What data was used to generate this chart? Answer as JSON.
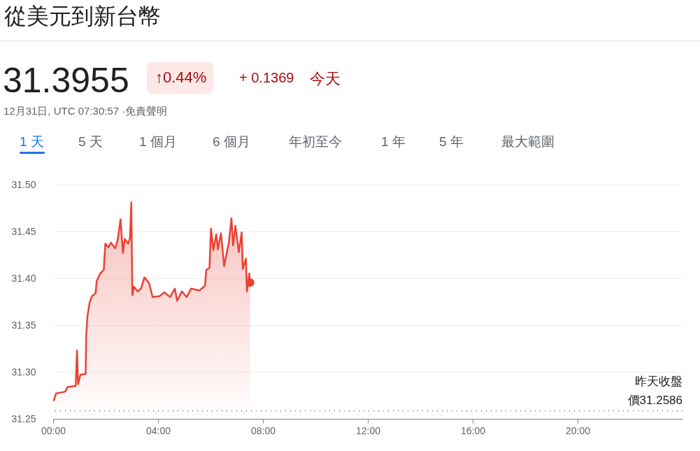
{
  "chart_data": {
    "type": "area",
    "title": "從美元到新台幣",
    "annotations": [
      "31.3955",
      "↑0.44%",
      "+ 0.1369",
      "今天",
      "12月31日, UTC 07:30:57 ·免責聲明",
      "1 天",
      "5 天",
      "1 個月",
      "6 個月",
      "年初至今",
      "1 年",
      "5 年",
      "最大範圍"
    ],
    "series": [
      {
        "color": "#e94235",
        "x": [
          0.02,
          0.107,
          0.46,
          0.55,
          0.86,
          0.91,
          0.95,
          1.04,
          1.24,
          1.26,
          1.31,
          1.39,
          1.48,
          1.62,
          1.66,
          1.79,
          1.93,
          1.99,
          2.11,
          2.2,
          2.37,
          2.46,
          2.57,
          2.66,
          2.73,
          2.86,
          2.93,
          2.98,
          3.02,
          3.08,
          3.22,
          3.35,
          3.48,
          3.66,
          3.79,
          4.06,
          4.24,
          4.46,
          4.64,
          4.73,
          4.91,
          5.09,
          5.26,
          5.57,
          5.79,
          5.84,
          5.96,
          6.02,
          6.11,
          6.22,
          6.28,
          6.4,
          6.52,
          6.64,
          6.7,
          6.8,
          6.86,
          6.95,
          7.08,
          7.19,
          7.23,
          7.35,
          7.39,
          7.48,
          7.51
        ],
        "values": [
          31.269,
          31.277,
          31.279,
          31.284,
          31.285,
          31.323,
          31.287,
          31.297,
          31.298,
          31.339,
          31.36,
          31.374,
          31.381,
          31.384,
          31.397,
          31.405,
          31.409,
          31.437,
          31.433,
          31.438,
          31.432,
          31.441,
          31.463,
          31.427,
          31.442,
          31.437,
          31.443,
          31.481,
          31.382,
          31.391,
          31.386,
          31.389,
          31.401,
          31.395,
          31.38,
          31.381,
          31.385,
          31.38,
          31.389,
          31.376,
          31.386,
          31.38,
          31.389,
          31.387,
          31.392,
          31.409,
          31.411,
          31.453,
          31.43,
          31.447,
          31.431,
          31.448,
          31.413,
          31.43,
          31.438,
          31.464,
          31.435,
          31.456,
          31.428,
          31.449,
          31.41,
          31.421,
          31.386,
          31.405,
          31.3955
        ]
      }
    ],
    "xlim": [
      0,
      24
    ],
    "xticks": [
      {
        "value": 0,
        "label": "00:00"
      },
      {
        "value": 4,
        "label": "04:00"
      },
      {
        "value": 8,
        "label": "08:00"
      },
      {
        "value": 12,
        "label": "12:00"
      },
      {
        "value": 16,
        "label": "16:00"
      },
      {
        "value": 20,
        "label": "20:00"
      }
    ],
    "ylim": [
      31.25,
      31.5
    ],
    "yticks": [
      31.25,
      {
        "value": 31.3,
        "label": "31.30"
      },
      31.35,
      {
        "value": 31.4,
        "label": "31.40"
      },
      31.45,
      {
        "value": 31.5,
        "label": "31.50"
      }
    ],
    "ref_lines": [
      {
        "axis": "y",
        "value": 31.2586,
        "label": "昨天收盤價31.2586",
        "color": "#5f6368",
        "line_style": "dotted"
      }
    ],
    "grid": "y"
  }
}
